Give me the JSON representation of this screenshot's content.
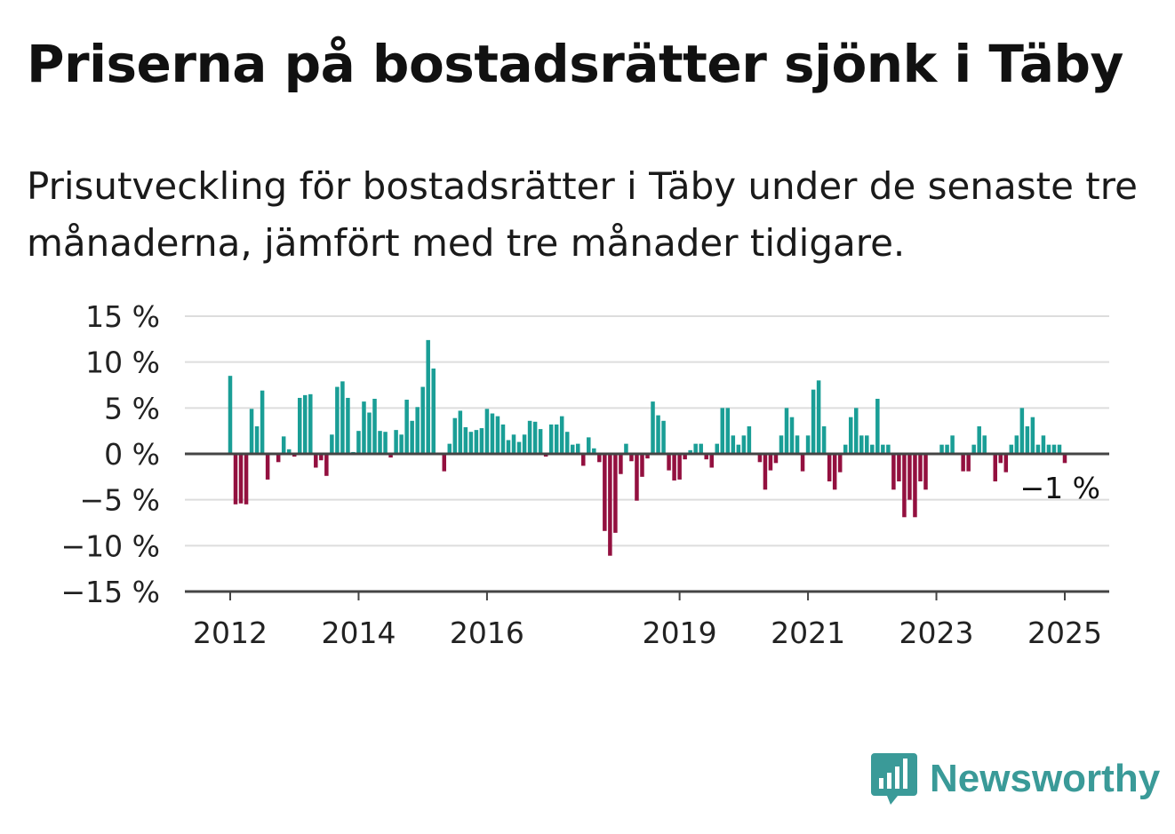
{
  "header": {
    "title": "Priserna på bostadsrätter sjönk i Täby",
    "subtitle": "Prisutveckling för bostadsrätter i Täby under de senaste tre månaderna, jämfört med tre månader tidigare."
  },
  "brand": {
    "name": "Newsworthy",
    "icon": "bar-chart-speech-bubble-icon"
  },
  "colors": {
    "positive": "#1a9e96",
    "negative": "#93103f",
    "grid": "#dddddd",
    "axis": "#444444"
  },
  "chart_data": {
    "type": "bar",
    "x_unit": "month",
    "start": "2012-01",
    "end": "2025-01",
    "ylim": [
      -15,
      15
    ],
    "yticks": [
      15,
      10,
      5,
      0,
      -5,
      -10,
      -15
    ],
    "ytick_labels": [
      "15 %",
      "10 %",
      "5 %",
      "0 %",
      "−5 %",
      "−10 %",
      "−15 %"
    ],
    "xticks": [
      "2012",
      "2014",
      "2016",
      "2019",
      "2021",
      "2023",
      "2025"
    ],
    "grid": true,
    "annotation": "−1 %",
    "values": [
      8.5,
      -5.5,
      -5.4,
      -5.5,
      4.9,
      3,
      6.9,
      -2.8,
      0,
      -0.9,
      1.9,
      0.5,
      -0.3,
      6.1,
      6.4,
      6.5,
      -1.5,
      -0.7,
      -2.4,
      2.1,
      7.3,
      7.9,
      6.1,
      0.2,
      2.5,
      5.7,
      4.5,
      6,
      2.5,
      2.4,
      -0.4,
      2.6,
      2.1,
      5.9,
      3.6,
      5.1,
      7.3,
      12.4,
      9.3,
      0,
      -1.9,
      1.1,
      3.9,
      4.7,
      2.9,
      2.4,
      2.6,
      2.8,
      4.9,
      4.4,
      4.1,
      3.2,
      1.5,
      2.1,
      1.3,
      2.1,
      3.6,
      3.5,
      2.7,
      -0.3,
      3.2,
      3.2,
      4.1,
      2.4,
      1,
      1.1,
      -1.3,
      1.8,
      0.6,
      -0.9,
      -8.4,
      -11.1,
      -8.6,
      -2.2,
      1.1,
      -0.8,
      -5.1,
      -2.5,
      -0.5,
      5.7,
      4.2,
      3.6,
      -1.8,
      -2.9,
      -2.8,
      -0.6,
      0.4,
      1.1,
      1.1,
      -0.6,
      -1.5,
      1.1,
      5,
      5,
      2,
      1,
      2,
      3,
      0,
      -0.9,
      -3.9,
      -1.8,
      -1,
      2,
      5,
      4,
      2,
      -1.9,
      2,
      7,
      8,
      3,
      -3,
      -3.9,
      -2,
      1,
      4,
      5,
      2,
      2,
      1,
      6,
      1,
      1,
      -3.9,
      -3,
      -6.9,
      -5,
      -6.9,
      -3,
      -3.9,
      0,
      0,
      1,
      1,
      2,
      0,
      -1.9,
      -1.9,
      1,
      3,
      2,
      0,
      -3,
      -1,
      -2,
      1,
      2,
      5,
      3,
      4,
      1,
      2,
      1,
      1,
      1,
      -1
    ]
  }
}
